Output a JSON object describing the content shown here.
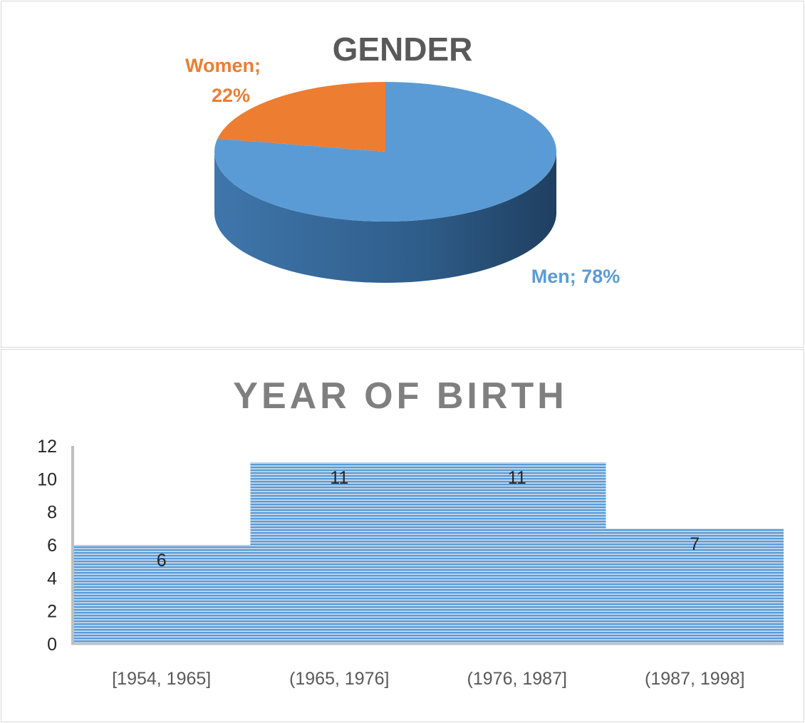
{
  "chart_data": [
    {
      "type": "pie",
      "title": "GENDER",
      "style": "3d",
      "slices": [
        {
          "label": "Women",
          "value": 22,
          "data_label": "Women;",
          "pct_label": "22%",
          "color": "#ED7D31"
        },
        {
          "label": "Men",
          "value": 78,
          "data_label": "Men; 78%",
          "color": "#5B9BD5"
        }
      ]
    },
    {
      "type": "bar",
      "title": "YEAR OF BIRTH",
      "categories": [
        "[1954, 1965]",
        "(1965, 1976]",
        "(1976, 1987]",
        "(1987, 1998]"
      ],
      "values": [
        6,
        11,
        11,
        7
      ],
      "data_labels": [
        "6",
        "11",
        "11",
        "7"
      ],
      "ylim": [
        0,
        12
      ],
      "yticks": [
        "0",
        "2",
        "4",
        "6",
        "8",
        "10",
        "12"
      ],
      "xlabel": "",
      "ylabel": "",
      "color": "#5B9BD5",
      "grid": false
    }
  ]
}
